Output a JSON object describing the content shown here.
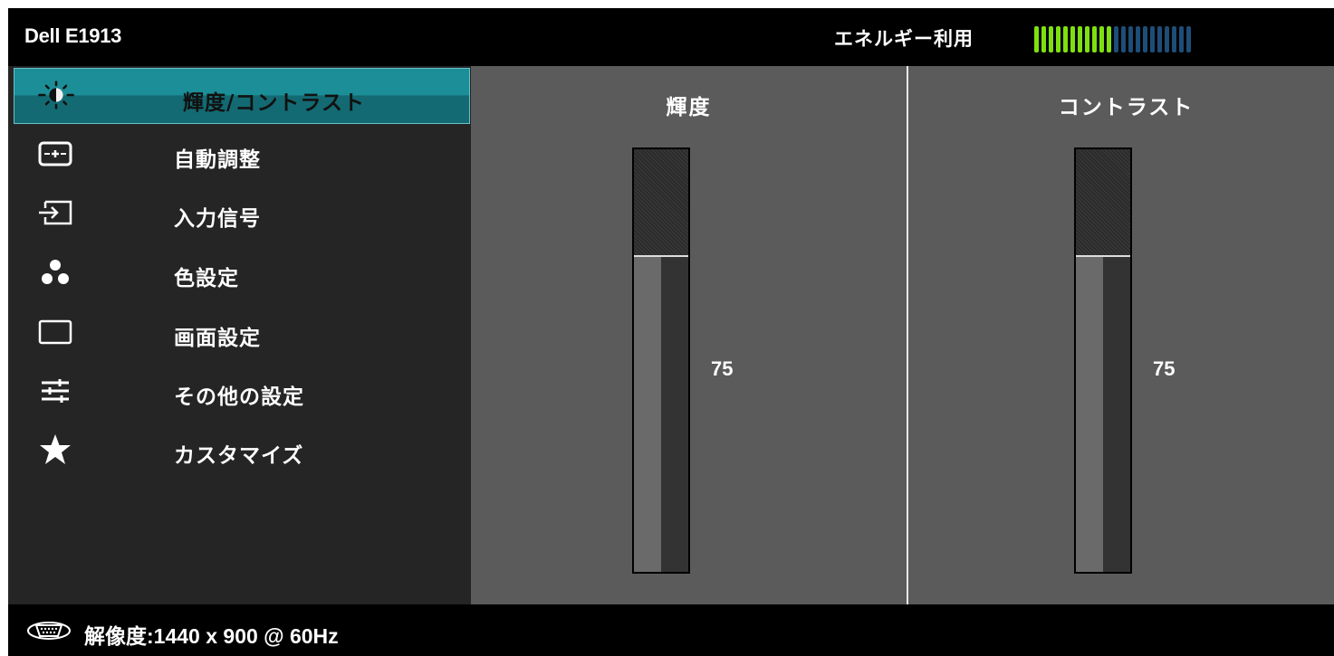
{
  "header": {
    "model": "Dell E1913",
    "energy_label": "エネルギー利用",
    "energy_level": {
      "filled_segments": 11,
      "total_segments": 22
    },
    "energy_colors": {
      "on": "#7fe010",
      "off": "#1e4d78"
    }
  },
  "menu": {
    "items": [
      {
        "label": "輝度/コントラスト",
        "icon": "brightness-icon",
        "selected": true
      },
      {
        "label": "自動調整",
        "icon": "auto-adjust-icon",
        "selected": false
      },
      {
        "label": "入力信号",
        "icon": "input-source-icon",
        "selected": false
      },
      {
        "label": "色設定",
        "icon": "color-settings-icon",
        "selected": false
      },
      {
        "label": "画面設定",
        "icon": "display-settings-icon",
        "selected": false
      },
      {
        "label": "その他の設定",
        "icon": "other-settings-icon",
        "selected": false
      },
      {
        "label": "カスタマイズ",
        "icon": "star-icon",
        "selected": false
      }
    ],
    "selected_color": "#1c8e98"
  },
  "panes": {
    "brightness": {
      "title": "輝度",
      "value": "75",
      "min": 0,
      "max": 100
    },
    "contrast": {
      "title": "コントラスト",
      "value": "75",
      "min": 0,
      "max": 100
    }
  },
  "footer": {
    "resolution_icon": "vga-connector-icon",
    "resolution_text": "解像度:1440 x 900 @ 60Hz"
  }
}
